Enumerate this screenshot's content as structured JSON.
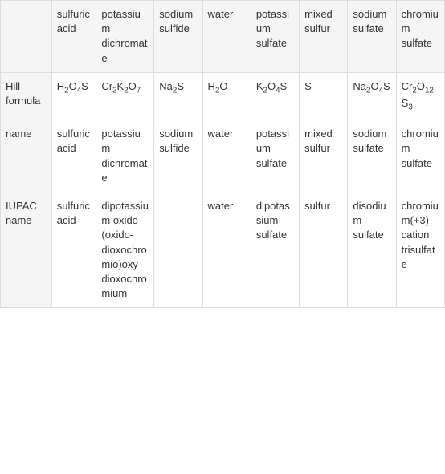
{
  "table": {
    "background_header": "#f5f5f5",
    "border_color": "#dddddd",
    "text_color": "#333333",
    "font_size": 13,
    "columns": [
      "",
      "sulfuric acid",
      "potassium dichromate",
      "sodium sulfide",
      "water",
      "potassium sulfate",
      "mixed sulfur",
      "sodium sulfate",
      "chromium sulfate"
    ],
    "rows": [
      {
        "label": "Hill formula",
        "cells": [
          "H₂O₄S",
          "Cr₂K₂O₇",
          "Na₂S",
          "H₂O",
          "K₂O₄S",
          "S",
          "Na₂O₄S",
          "Cr₂O₁₂S₃"
        ]
      },
      {
        "label": "name",
        "cells": [
          "sulfuric acid",
          "potassium dichromate",
          "sodium sulfide",
          "water",
          "potassium sulfate",
          "mixed sulfur",
          "sodium sulfate",
          "chromium sulfate"
        ]
      },
      {
        "label": "IUPAC name",
        "cells": [
          "sulfuric acid",
          "dipotassium oxido-(oxido-dioxochromio)oxy-dioxochromium",
          "",
          "water",
          "dipotassium sulfate",
          "sulfur",
          "disodium sulfate",
          "chromium(+3) cation trisulfate"
        ]
      }
    ]
  }
}
